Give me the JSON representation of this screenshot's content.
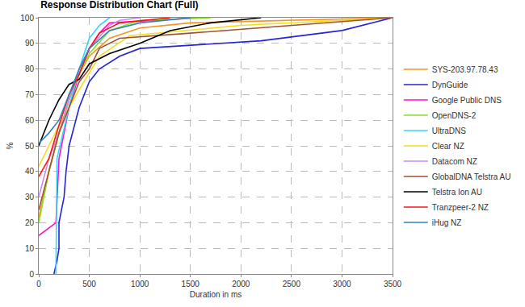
{
  "chart_data": {
    "type": "line",
    "title": "Response Distribution Chart (Full)",
    "x_label": "Duration in ms",
    "y_label": "%",
    "xlim": [
      0,
      3500
    ],
    "xticks": [
      0,
      500,
      1000,
      1500,
      2000,
      2500,
      3000,
      3500
    ],
    "ylim": [
      0,
      100
    ],
    "yticks": [
      0,
      10,
      20,
      30,
      40,
      50,
      60,
      70,
      80,
      90,
      100
    ],
    "grid": true,
    "legend": "right",
    "series": [
      {
        "name": "SYS-203.97.78.43",
        "color": "#f7941d",
        "x": [
          0,
          100,
          200,
          300,
          400,
          500,
          700,
          1000,
          1500,
          3500
        ],
        "values": [
          22,
          40,
          55,
          68,
          78,
          85,
          92,
          96,
          98,
          100
        ]
      },
      {
        "name": "DynGuide",
        "color": "#2424d6",
        "x": [
          150,
          180,
          200,
          200,
          250,
          270,
          300,
          400,
          500,
          600,
          800,
          1000,
          2200,
          3000,
          3500
        ],
        "values": [
          0,
          5,
          10,
          20,
          30,
          40,
          50,
          65,
          75,
          80,
          85,
          88,
          91,
          95,
          100
        ]
      },
      {
        "name": "Google Public DNS",
        "color": "#ff11cc",
        "x": [
          0,
          170,
          200,
          300,
          400,
          500,
          600,
          700,
          1600
        ],
        "values": [
          15,
          20,
          45,
          65,
          78,
          88,
          94,
          98,
          100
        ]
      },
      {
        "name": "OpenDNS-2",
        "color": "#88e024",
        "x": [
          0,
          100,
          200,
          300,
          400,
          500,
          700,
          1000,
          1700
        ],
        "values": [
          20,
          40,
          55,
          68,
          78,
          86,
          95,
          99,
          100
        ]
      },
      {
        "name": "UltraDNS",
        "color": "#33d6ff",
        "x": [
          170,
          180,
          300,
          400,
          500,
          600,
          700
        ],
        "values": [
          0,
          45,
          65,
          80,
          92,
          97,
          100
        ]
      },
      {
        "name": "Clear NZ",
        "color": "#f2dc1c",
        "x": [
          0,
          100,
          200,
          300,
          400,
          600,
          900,
          2000,
          3500
        ],
        "values": [
          42,
          50,
          58,
          65,
          72,
          85,
          93,
          97,
          100
        ]
      },
      {
        "name": "Datacom NZ",
        "color": "#c68af2",
        "x": [
          0,
          100,
          200,
          300,
          400,
          500,
          700,
          800,
          1000
        ],
        "values": [
          30,
          45,
          55,
          68,
          80,
          88,
          97,
          99,
          100
        ]
      },
      {
        "name": "GlobalDNA Telstra AU",
        "color": "#a0522d",
        "x": [
          0,
          100,
          200,
          300,
          400,
          500,
          600,
          800,
          1500,
          3500
        ],
        "values": [
          25,
          40,
          55,
          65,
          75,
          80,
          88,
          92,
          94,
          100
        ]
      },
      {
        "name": "Telstra Ion AU",
        "color": "#000000",
        "x": [
          0,
          50,
          100,
          200,
          300,
          400,
          500,
          700,
          1000,
          1300,
          1700,
          2200
        ],
        "values": [
          50,
          55,
          60,
          68,
          74,
          76,
          82,
          86,
          90,
          95,
          98,
          100
        ]
      },
      {
        "name": "Tranzpeer-2 NZ",
        "color": "#ff1414",
        "x": [
          0,
          100,
          200,
          300,
          400,
          500,
          600,
          800,
          1300
        ],
        "values": [
          38,
          45,
          58,
          70,
          78,
          88,
          94,
          98,
          100
        ]
      },
      {
        "name": "iHug NZ",
        "color": "#3282c2",
        "x": [
          0,
          100,
          200,
          300,
          400,
          500,
          700,
          1000,
          1500
        ],
        "values": [
          51,
          55,
          60,
          70,
          80,
          88,
          95,
          98,
          100
        ]
      }
    ]
  }
}
